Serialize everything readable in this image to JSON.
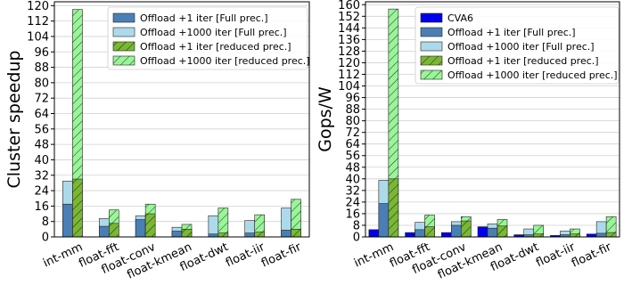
{
  "colors": {
    "cva6": "#0000ee",
    "full1": "#4a7fb5",
    "full1000": "#addaea",
    "red1": "#7ab834",
    "red1000": "#98f598",
    "grid": "#d0d0d0"
  },
  "chart_data": [
    {
      "type": "bar",
      "ylabel": "Cluster speedup",
      "ylim": [
        0,
        122
      ],
      "yticks": [
        0,
        8,
        16,
        24,
        32,
        40,
        48,
        56,
        64,
        72,
        80,
        88,
        96,
        104,
        112,
        120
      ],
      "grid": true,
      "legend_position": "top-right",
      "categories": [
        "int-mm",
        "float-fft",
        "float-conv",
        "float-kmean",
        "float-dwt",
        "float-iir",
        "float-fir"
      ],
      "series": [
        {
          "name": "Offload +1 iter [Full prec.]",
          "values": [
            17,
            5.5,
            9,
            3,
            1.5,
            2,
            3.5
          ]
        },
        {
          "name": "Offload +1000 iter [Full prec.]",
          "values": [
            29,
            9.5,
            11,
            5,
            11,
            8.5,
            15
          ]
        },
        {
          "name": "Offload +1 iter [reduced prec.]",
          "values": [
            30,
            7,
            12,
            4,
            2,
            2.5,
            4
          ]
        },
        {
          "name": "Offload +1000 iter [reduced prec.]",
          "values": [
            118,
            14,
            17,
            6.5,
            15,
            11.5,
            19.5
          ]
        }
      ]
    },
    {
      "type": "bar",
      "ylabel": "Gops/W",
      "ylim": [
        0,
        162
      ],
      "yticks": [
        0,
        8,
        16,
        24,
        32,
        40,
        48,
        56,
        64,
        72,
        80,
        88,
        96,
        104,
        112,
        120,
        128,
        136,
        144,
        152,
        160
      ],
      "grid": true,
      "legend_position": "top-right",
      "categories": [
        "int-mm",
        "float-fft",
        "float-conv",
        "float-kmean",
        "float-dwt",
        "float-iir",
        "float-fir"
      ],
      "series": [
        {
          "name": "CVA6",
          "values": [
            5,
            3,
            3,
            7,
            1.5,
            1,
            2
          ]
        },
        {
          "name": "Offload +1 iter [Full prec.]",
          "values": [
            23,
            5,
            8,
            6,
            1.5,
            1.5,
            2.5
          ]
        },
        {
          "name": "Offload +1000 iter [Full prec.]",
          "values": [
            39,
            10,
            10.5,
            9,
            5.5,
            4,
            10.5
          ]
        },
        {
          "name": "Offload +1 iter [reduced prec.]",
          "values": [
            40,
            7,
            11,
            7.5,
            2,
            2,
            3
          ]
        },
        {
          "name": "Offload +1000 iter [reduced prec.]",
          "values": [
            157,
            15,
            14,
            12,
            8,
            5.5,
            14
          ]
        }
      ]
    }
  ]
}
